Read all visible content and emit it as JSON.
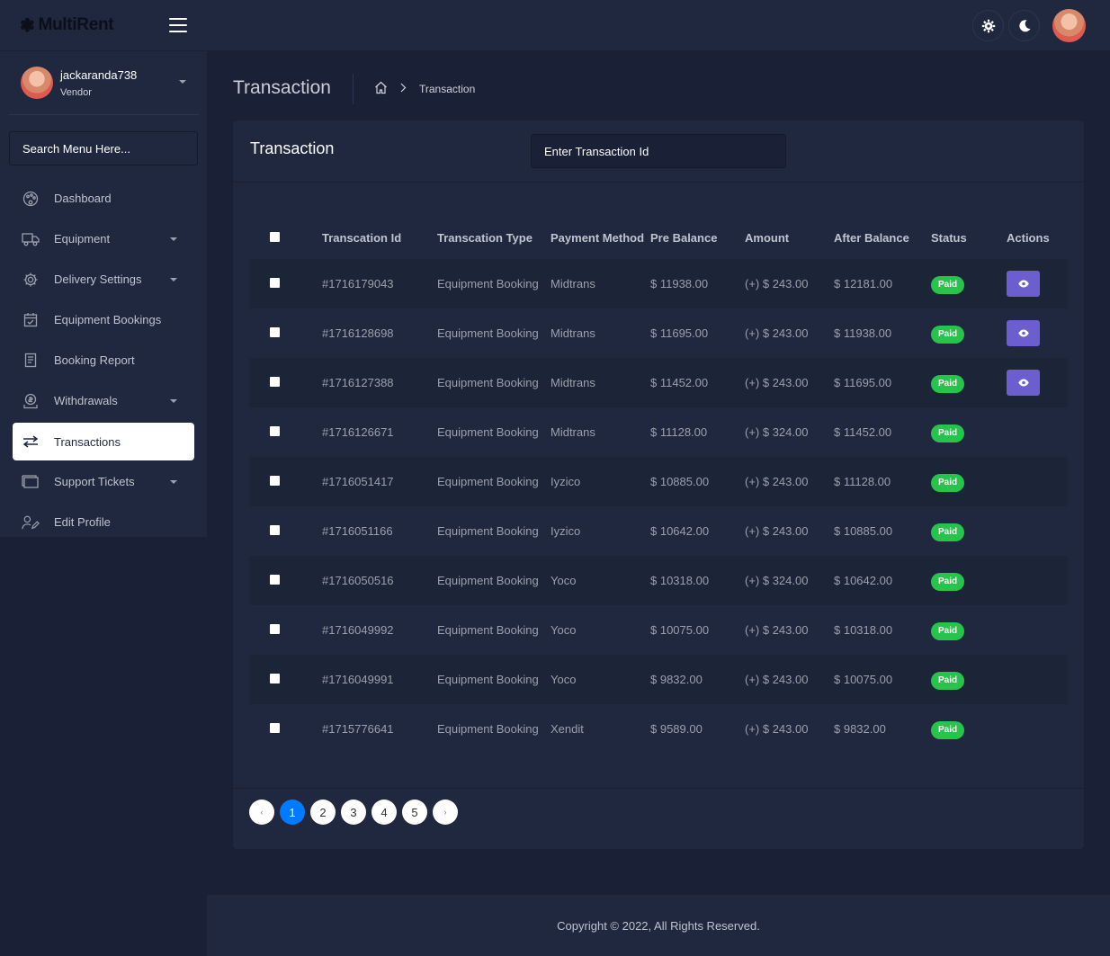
{
  "brand": {
    "name": "MultiRent"
  },
  "colors": {
    "background": "#1a2035",
    "panel": "#1f283e",
    "accent": "#007bff",
    "status_paid": "#26c44a",
    "action": "#6c5ecf"
  },
  "user": {
    "name": "jackaranda738",
    "role": "Vendor"
  },
  "sidebar": {
    "search_label": "Search Menu Here...",
    "items": [
      {
        "label": "Dashboard",
        "icon": "palette-icon"
      },
      {
        "label": "Equipment",
        "icon": "truck-icon"
      },
      {
        "label": "Delivery Settings",
        "icon": "gear-icon"
      },
      {
        "label": "Equipment Bookings",
        "icon": "calendar-check-icon"
      },
      {
        "label": "Booking Report",
        "icon": "report-icon"
      },
      {
        "label": "Withdrawals",
        "icon": "money-icon"
      },
      {
        "label": "Transactions",
        "icon": "exchange-icon"
      },
      {
        "label": "Support Tickets",
        "icon": "ticket-icon"
      },
      {
        "label": "Edit Profile",
        "icon": "user-edit-icon"
      }
    ]
  },
  "header": {
    "title": "Transaction",
    "breadcrumb_current": "Transaction"
  },
  "card": {
    "title": "Transaction",
    "search_placeholder": "Enter Transaction Id"
  },
  "table": {
    "headers": {
      "id": "Transcation Id",
      "type": "Transcation Type",
      "payment": "Payment Method",
      "pre": "Pre Balance",
      "amount": "Amount",
      "after": "After Balance",
      "status": "Status",
      "actions": "Actions"
    },
    "rows": [
      {
        "id": "#1716179043",
        "type": "Equipment Booking",
        "payment": "Midtrans",
        "pre": "$ 11938.00",
        "amount": "(+) $ 243.00",
        "after": "$ 12181.00",
        "status": "Paid",
        "action": true
      },
      {
        "id": "#1716128698",
        "type": "Equipment Booking",
        "payment": "Midtrans",
        "pre": "$ 11695.00",
        "amount": "(+) $ 243.00",
        "after": "$ 11938.00",
        "status": "Paid",
        "action": true
      },
      {
        "id": "#1716127388",
        "type": "Equipment Booking",
        "payment": "Midtrans",
        "pre": "$ 11452.00",
        "amount": "(+) $ 243.00",
        "after": "$ 11695.00",
        "status": "Paid",
        "action": true
      },
      {
        "id": "#1716126671",
        "type": "Equipment Booking",
        "payment": "Midtrans",
        "pre": "$ 11128.00",
        "amount": "(+) $ 324.00",
        "after": "$ 11452.00",
        "status": "Paid",
        "action": false
      },
      {
        "id": "#1716051417",
        "type": "Equipment Booking",
        "payment": "Iyzico",
        "pre": "$ 10885.00",
        "amount": "(+) $ 243.00",
        "after": "$ 11128.00",
        "status": "Paid",
        "action": false
      },
      {
        "id": "#1716051166",
        "type": "Equipment Booking",
        "payment": "Iyzico",
        "pre": "$ 10642.00",
        "amount": "(+) $ 243.00",
        "after": "$ 10885.00",
        "status": "Paid",
        "action": false
      },
      {
        "id": "#1716050516",
        "type": "Equipment Booking",
        "payment": "Yoco",
        "pre": "$ 10318.00",
        "amount": "(+) $ 324.00",
        "after": "$ 10642.00",
        "status": "Paid",
        "action": false
      },
      {
        "id": "#1716049992",
        "type": "Equipment Booking",
        "payment": "Yoco",
        "pre": "$ 10075.00",
        "amount": "(+) $ 243.00",
        "after": "$ 10318.00",
        "status": "Paid",
        "action": false
      },
      {
        "id": "#1716049991",
        "type": "Equipment Booking",
        "payment": "Yoco",
        "pre": "$ 9832.00",
        "amount": "(+) $ 243.00",
        "after": "$ 10075.00",
        "status": "Paid",
        "action": false
      },
      {
        "id": "#1715776641",
        "type": "Equipment Booking",
        "payment": "Xendit",
        "pre": "$ 9589.00",
        "amount": "(+) $ 243.00",
        "after": "$ 9832.00",
        "status": "Paid",
        "action": false
      }
    ]
  },
  "pagination": {
    "prev": "‹",
    "pages": [
      "1",
      "2",
      "3",
      "4",
      "5"
    ],
    "next": "›",
    "current": "1"
  },
  "footer": {
    "copyright": "Copyright © 2022, All Rights Reserved."
  }
}
